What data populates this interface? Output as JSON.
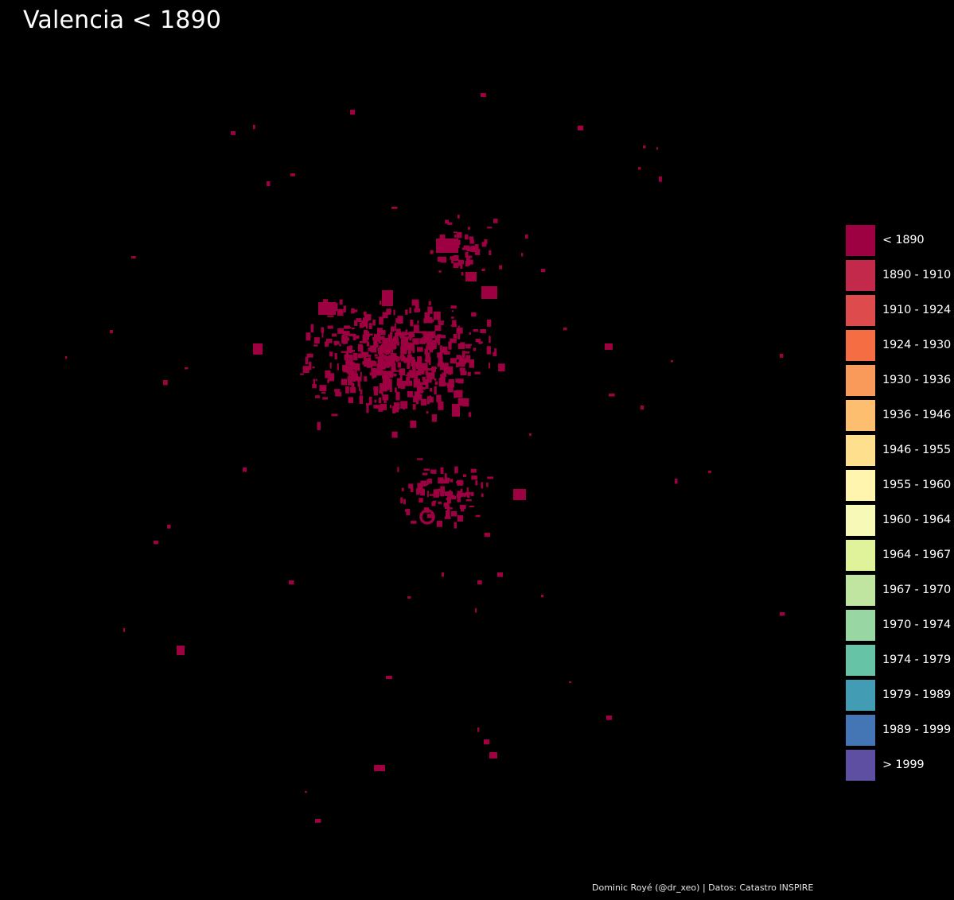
{
  "title": "Valencia < 1890",
  "map": {
    "highlight_period": "< 1890",
    "highlight_color": "#9E0142",
    "background_color": "#000000"
  },
  "legend": {
    "items": [
      {
        "label": "< 1890",
        "color": "#9E0142"
      },
      {
        "label": "1890 - 1910",
        "color": "#C2294A"
      },
      {
        "label": "1910 - 1924",
        "color": "#DD4B4C"
      },
      {
        "label": "1924 - 1930",
        "color": "#F46D43"
      },
      {
        "label": "1930 - 1936",
        "color": "#F99A5A"
      },
      {
        "label": "1936 - 1946",
        "color": "#FDBE6F"
      },
      {
        "label": "1946 - 1955",
        "color": "#FEDF8D"
      },
      {
        "label": "1955 - 1960",
        "color": "#FFF5AE"
      },
      {
        "label": "1960 - 1964",
        "color": "#F6FAB6"
      },
      {
        "label": "1964 - 1967",
        "color": "#E1F39A"
      },
      {
        "label": "1967 - 1970",
        "color": "#C0E5A0"
      },
      {
        "label": "1970 - 1974",
        "color": "#98D6A4"
      },
      {
        "label": "1974 - 1979",
        "color": "#67C3A5"
      },
      {
        "label": "1979 - 1989",
        "color": "#429CB4"
      },
      {
        "label": "1989 - 1999",
        "color": "#4475B4"
      },
      {
        "label": "> 1999",
        "color": "#5E4FA2"
      }
    ]
  },
  "caption": "Dominic Royé (@dr_xeo) | Datos: Catastro INSPIRE"
}
